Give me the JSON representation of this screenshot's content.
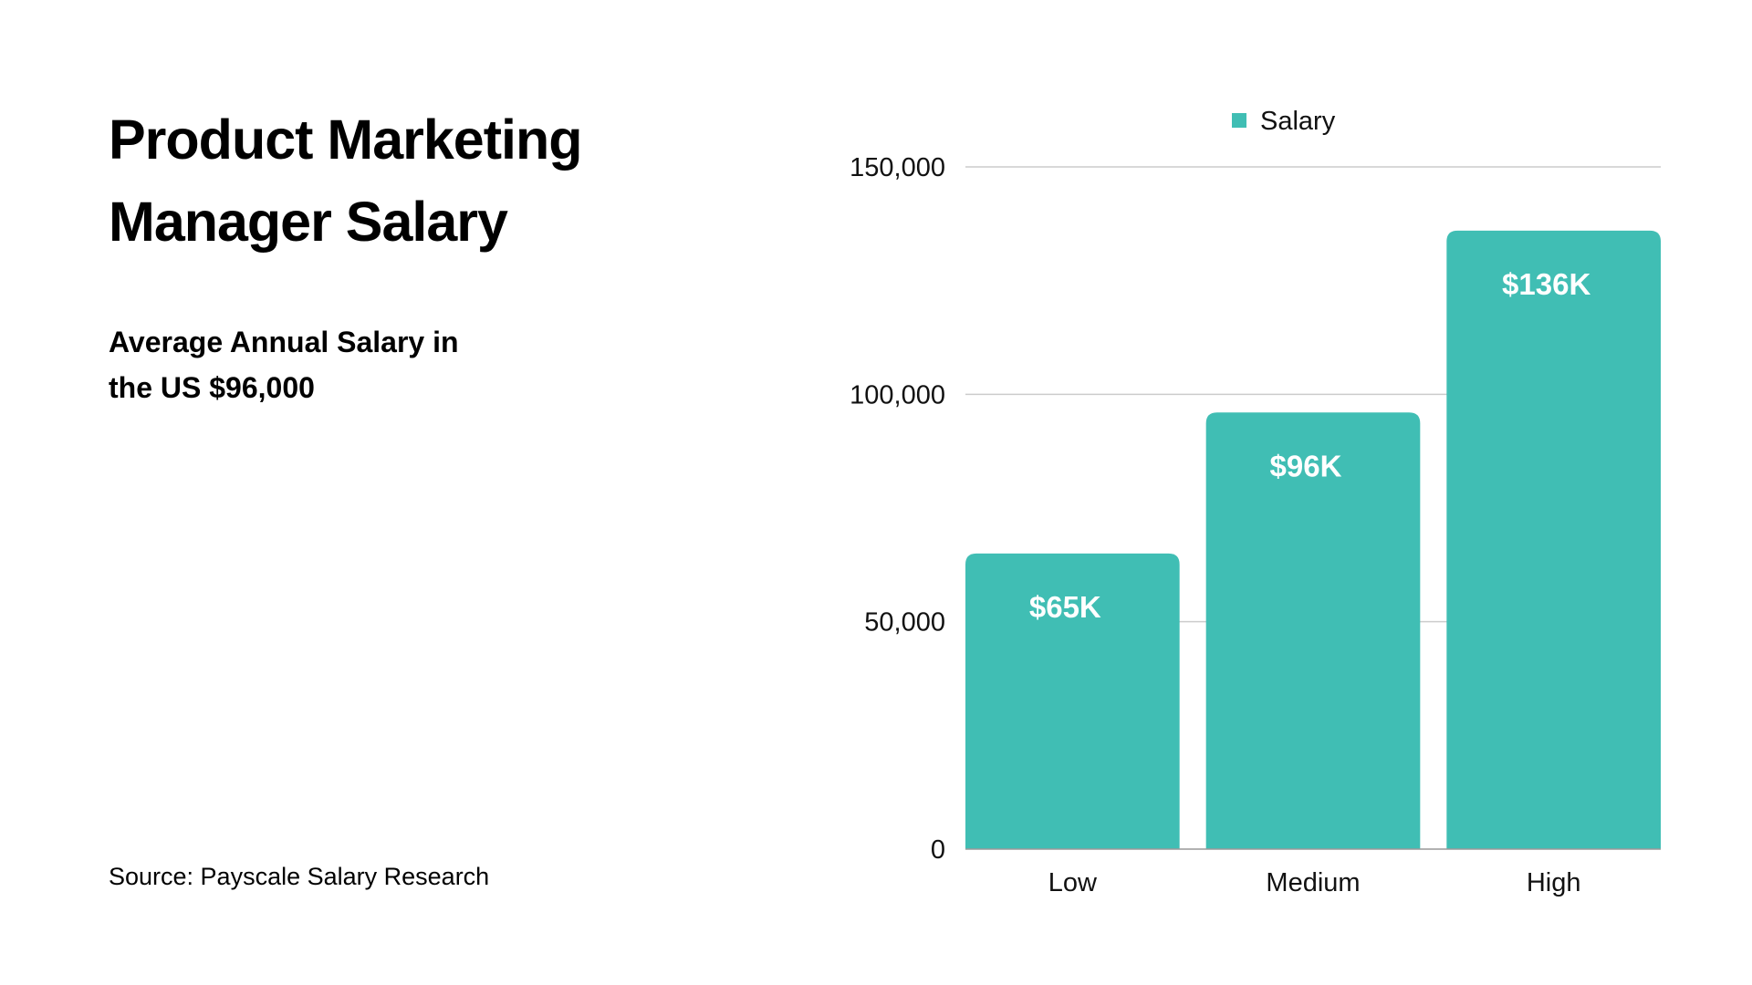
{
  "header": {
    "title": "Product Marketing\nManager Salary",
    "subtitle": "Average Annual Salary in\nthe US $96,000"
  },
  "footer": {
    "source": "Source: Payscale Salary Research"
  },
  "colors": {
    "bar": "#40beb4",
    "grid": "#cccccc",
    "axis": "#999999"
  },
  "chart_data": {
    "type": "bar",
    "categories": [
      "Low",
      "Medium",
      "High"
    ],
    "series": [
      {
        "name": "Salary",
        "values": [
          65000,
          96000,
          136000
        ],
        "labels": [
          "$65K",
          "$96K",
          "$136K"
        ]
      }
    ],
    "ylim": [
      0,
      150000
    ],
    "yticks": [
      0,
      50000,
      100000,
      150000
    ],
    "ytick_labels": [
      "0",
      "50,000",
      "100,000",
      "150,000"
    ],
    "grid": true,
    "legend": "top"
  }
}
